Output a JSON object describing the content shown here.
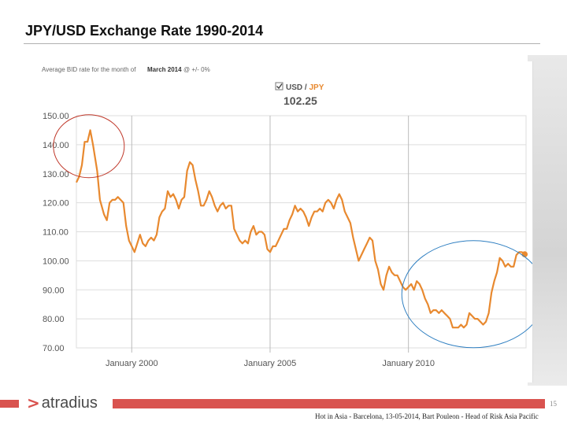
{
  "slide": {
    "title": "JPY/USD Exchange Rate 1990-2014",
    "page_number": "15",
    "footer_note": "Hot in Asia - Barcelona, 13-05-2014, Bart Pouleon - Head of Risk Asia Pacific",
    "logo_mark": ">",
    "logo_text": "atradius"
  },
  "widget": {
    "caption_prefix": "Average BID rate for the month of",
    "caption_month": "March 2014",
    "caption_suffix": "@ +/- 0%",
    "pair_base": "USD",
    "pair_sep": " / ",
    "pair_quote": "JPY",
    "current_value": "102.25"
  },
  "colors": {
    "line": "#e8892f",
    "grid": "#dddddd",
    "circle_red": "#c0392b",
    "circle_blue": "#2f7fc1",
    "accent": "#d9534f"
  },
  "chart_data": {
    "type": "line",
    "title": "",
    "xlabel": "",
    "ylabel": "",
    "ylim": [
      70,
      150
    ],
    "xlim": [
      1998.0,
      2014.25
    ],
    "yticks": [
      "150.00",
      "140.00",
      "130.00",
      "120.00",
      "110.00",
      "100.00",
      "90.00",
      "80.00",
      "70.00"
    ],
    "xticks": [
      {
        "x": 2000.0,
        "label": "January 2000"
      },
      {
        "x": 2005.0,
        "label": "January 2005"
      },
      {
        "x": 2010.0,
        "label": "January 2010"
      }
    ],
    "grid": true,
    "series": [
      {
        "values": [
          [
            1998.0,
            127
          ],
          [
            1998.1,
            129
          ],
          [
            1998.2,
            133
          ],
          [
            1998.3,
            141
          ],
          [
            1998.4,
            141
          ],
          [
            1998.5,
            145
          ],
          [
            1998.6,
            140
          ],
          [
            1998.75,
            131
          ],
          [
            1998.85,
            121
          ],
          [
            1999.0,
            116
          ],
          [
            1999.1,
            114
          ],
          [
            1999.2,
            120
          ],
          [
            1999.3,
            121
          ],
          [
            1999.4,
            121
          ],
          [
            1999.5,
            122
          ],
          [
            1999.7,
            120
          ],
          [
            1999.8,
            112
          ],
          [
            1999.9,
            107
          ],
          [
            2000.0,
            105
          ],
          [
            2000.1,
            103
          ],
          [
            2000.2,
            106
          ],
          [
            2000.3,
            109
          ],
          [
            2000.4,
            106
          ],
          [
            2000.5,
            105
          ],
          [
            2000.6,
            107
          ],
          [
            2000.7,
            108
          ],
          [
            2000.8,
            107
          ],
          [
            2000.9,
            109
          ],
          [
            2001.0,
            115
          ],
          [
            2001.1,
            117
          ],
          [
            2001.2,
            118
          ],
          [
            2001.3,
            124
          ],
          [
            2001.4,
            122
          ],
          [
            2001.5,
            123
          ],
          [
            2001.6,
            121
          ],
          [
            2001.7,
            118
          ],
          [
            2001.8,
            121
          ],
          [
            2001.9,
            122
          ],
          [
            2002.0,
            131
          ],
          [
            2002.1,
            134
          ],
          [
            2002.2,
            133
          ],
          [
            2002.3,
            128
          ],
          [
            2002.4,
            124
          ],
          [
            2002.5,
            119
          ],
          [
            2002.6,
            119
          ],
          [
            2002.7,
            121
          ],
          [
            2002.8,
            124
          ],
          [
            2002.9,
            122
          ],
          [
            2003.0,
            119
          ],
          [
            2003.1,
            117
          ],
          [
            2003.2,
            119
          ],
          [
            2003.3,
            120
          ],
          [
            2003.4,
            118
          ],
          [
            2003.5,
            119
          ],
          [
            2003.6,
            119
          ],
          [
            2003.7,
            111
          ],
          [
            2003.8,
            109
          ],
          [
            2003.9,
            107
          ],
          [
            2004.0,
            106
          ],
          [
            2004.1,
            107
          ],
          [
            2004.2,
            106
          ],
          [
            2004.3,
            110
          ],
          [
            2004.4,
            112
          ],
          [
            2004.5,
            109
          ],
          [
            2004.6,
            110
          ],
          [
            2004.7,
            110
          ],
          [
            2004.8,
            109
          ],
          [
            2004.9,
            104
          ],
          [
            2005.0,
            103
          ],
          [
            2005.1,
            105
          ],
          [
            2005.2,
            105
          ],
          [
            2005.3,
            107
          ],
          [
            2005.4,
            109
          ],
          [
            2005.5,
            111
          ],
          [
            2005.6,
            111
          ],
          [
            2005.7,
            114
          ],
          [
            2005.8,
            116
          ],
          [
            2005.9,
            119
          ],
          [
            2006.0,
            117
          ],
          [
            2006.1,
            118
          ],
          [
            2006.2,
            117
          ],
          [
            2006.3,
            115
          ],
          [
            2006.4,
            112
          ],
          [
            2006.5,
            115
          ],
          [
            2006.6,
            117
          ],
          [
            2006.7,
            117
          ],
          [
            2006.8,
            118
          ],
          [
            2006.9,
            117
          ],
          [
            2007.0,
            120
          ],
          [
            2007.1,
            121
          ],
          [
            2007.2,
            120
          ],
          [
            2007.3,
            118
          ],
          [
            2007.4,
            121
          ],
          [
            2007.5,
            123
          ],
          [
            2007.6,
            121
          ],
          [
            2007.7,
            117
          ],
          [
            2007.8,
            115
          ],
          [
            2007.9,
            113
          ],
          [
            2008.0,
            108
          ],
          [
            2008.1,
            104
          ],
          [
            2008.2,
            100
          ],
          [
            2008.3,
            102
          ],
          [
            2008.4,
            104
          ],
          [
            2008.5,
            106
          ],
          [
            2008.6,
            108
          ],
          [
            2008.7,
            107
          ],
          [
            2008.8,
            100
          ],
          [
            2008.9,
            97
          ],
          [
            2009.0,
            92
          ],
          [
            2009.1,
            90
          ],
          [
            2009.2,
            95
          ],
          [
            2009.3,
            98
          ],
          [
            2009.4,
            96
          ],
          [
            2009.5,
            95
          ],
          [
            2009.6,
            95
          ],
          [
            2009.7,
            93
          ],
          [
            2009.8,
            91
          ],
          [
            2009.9,
            90
          ],
          [
            2010.0,
            91
          ],
          [
            2010.1,
            92
          ],
          [
            2010.2,
            90
          ],
          [
            2010.3,
            93
          ],
          [
            2010.4,
            92
          ],
          [
            2010.5,
            90
          ],
          [
            2010.6,
            87
          ],
          [
            2010.7,
            85
          ],
          [
            2010.8,
            82
          ],
          [
            2010.9,
            83
          ],
          [
            2011.0,
            83
          ],
          [
            2011.1,
            82
          ],
          [
            2011.2,
            83
          ],
          [
            2011.3,
            82
          ],
          [
            2011.4,
            81
          ],
          [
            2011.5,
            80
          ],
          [
            2011.6,
            77
          ],
          [
            2011.7,
            77
          ],
          [
            2011.8,
            77
          ],
          [
            2011.9,
            78
          ],
          [
            2012.0,
            77
          ],
          [
            2012.1,
            78
          ],
          [
            2012.2,
            82
          ],
          [
            2012.3,
            81
          ],
          [
            2012.4,
            80
          ],
          [
            2012.5,
            80
          ],
          [
            2012.6,
            79
          ],
          [
            2012.7,
            78
          ],
          [
            2012.8,
            79
          ],
          [
            2012.9,
            82
          ],
          [
            2013.0,
            89
          ],
          [
            2013.1,
            93
          ],
          [
            2013.2,
            96
          ],
          [
            2013.3,
            101
          ],
          [
            2013.4,
            100
          ],
          [
            2013.5,
            98
          ],
          [
            2013.6,
            99
          ],
          [
            2013.7,
            98
          ],
          [
            2013.8,
            98
          ],
          [
            2013.9,
            102
          ],
          [
            2014.0,
            103
          ],
          [
            2014.1,
            103
          ],
          [
            2014.2,
            102.25
          ]
        ]
      }
    ],
    "endpoint": [
      2014.2,
      102.25
    ]
  }
}
